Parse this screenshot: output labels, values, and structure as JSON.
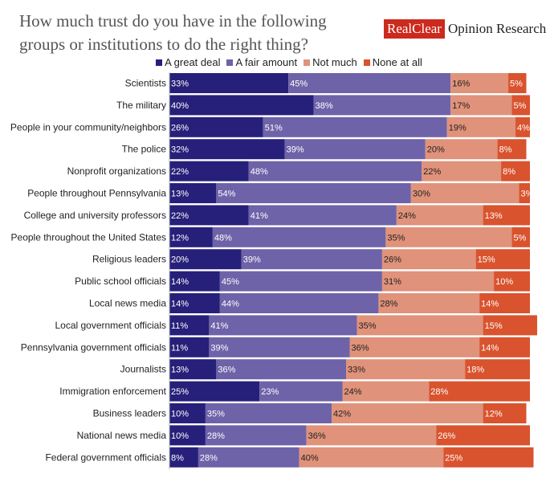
{
  "header": {
    "title": "How much trust do you have in the following groups or institutions to do the right thing?",
    "brand_highlight": "RealClear",
    "brand_rest": "Opinion Research"
  },
  "colors": {
    "a_great_deal": "#26207a",
    "a_fair_amount": "#6e63a8",
    "not_much": "#e0927a",
    "none_at_all": "#d9532e"
  },
  "chart_data": {
    "type": "bar",
    "orientation": "horizontal",
    "stacked": true,
    "title": "How much trust do you have in the following groups or institutions to do the right thing?",
    "legend_position": "top",
    "categories": [
      "Scientists",
      "The military",
      "People in your community/neighbors",
      "The police",
      "Nonprofit organizations",
      "People throughout Pennsylvania",
      "College and university professors",
      "People throughout the United States",
      "Religious leaders",
      "Public school officials",
      "Local news media",
      "Local government officials",
      "Pennsylvania government officials",
      "Journalists",
      "Immigration enforcement",
      "Business leaders",
      "National news media",
      "Federal government officials"
    ],
    "series": [
      {
        "name": "A great deal",
        "values": [
          33,
          40,
          26,
          32,
          22,
          13,
          22,
          12,
          20,
          14,
          14,
          11,
          11,
          13,
          25,
          10,
          10,
          8
        ]
      },
      {
        "name": "A fair amount",
        "values": [
          45,
          38,
          51,
          39,
          48,
          54,
          41,
          48,
          39,
          45,
          44,
          41,
          39,
          36,
          23,
          35,
          28,
          28
        ]
      },
      {
        "name": "Not much",
        "values": [
          16,
          17,
          19,
          20,
          22,
          30,
          24,
          35,
          26,
          31,
          28,
          35,
          36,
          33,
          24,
          42,
          36,
          40
        ]
      },
      {
        "name": "None at all",
        "values": [
          5,
          5,
          4,
          8,
          8,
          3,
          13,
          5,
          15,
          10,
          14,
          15,
          14,
          18,
          28,
          12,
          26,
          25
        ]
      }
    ],
    "value_suffix": "%",
    "xlim": [
      0,
      100
    ]
  }
}
